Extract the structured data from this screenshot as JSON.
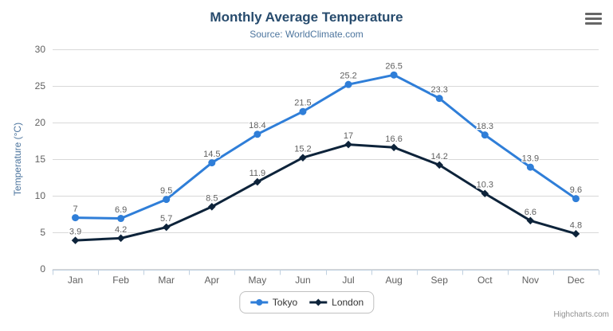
{
  "header": {
    "title": "Monthly Average Temperature",
    "subtitle": "Source: WorldClimate.com"
  },
  "icons": {
    "context_menu": "hamburger-menu-icon"
  },
  "chart_data": {
    "type": "line",
    "title": "Monthly Average Temperature",
    "subtitle": "Source: WorldClimate.com",
    "categories": [
      "Jan",
      "Feb",
      "Mar",
      "Apr",
      "May",
      "Jun",
      "Jul",
      "Aug",
      "Sep",
      "Oct",
      "Nov",
      "Dec"
    ],
    "series": [
      {
        "name": "Tokyo",
        "color": "#2f7ed8",
        "marker": "circle",
        "values": [
          7,
          6.9,
          9.5,
          14.5,
          18.4,
          21.5,
          25.2,
          26.5,
          23.3,
          18.3,
          13.9,
          9.6
        ]
      },
      {
        "name": "London",
        "color": "#0d233a",
        "marker": "diamond",
        "values": [
          3.9,
          4.2,
          5.7,
          8.5,
          11.9,
          15.2,
          17,
          16.6,
          14.2,
          10.3,
          6.6,
          4.8
        ]
      }
    ],
    "xlabel": "",
    "ylabel": "Temperature (°C)",
    "ylim": [
      0,
      30
    ],
    "yticks": [
      0,
      5,
      10,
      15,
      20,
      25,
      30
    ],
    "grid": true,
    "data_labels": true,
    "legend_position": "bottom"
  },
  "credits": {
    "label": "Highcharts.com"
  },
  "colors": {
    "tokyo": "#2f7ed8",
    "london": "#0d233a",
    "title": "#274b6d",
    "subtitle": "#4d759e",
    "axis_title": "#4d759e",
    "tick_label": "#606060",
    "data_label": "#606060",
    "grid": "#d8d8d8",
    "axis_line": "#c0d0e0",
    "legend_border": "#c0c0c0",
    "legend_text": "#333333",
    "credits": "#909090",
    "menu_icon": "#666666",
    "background": "#ffffff"
  }
}
